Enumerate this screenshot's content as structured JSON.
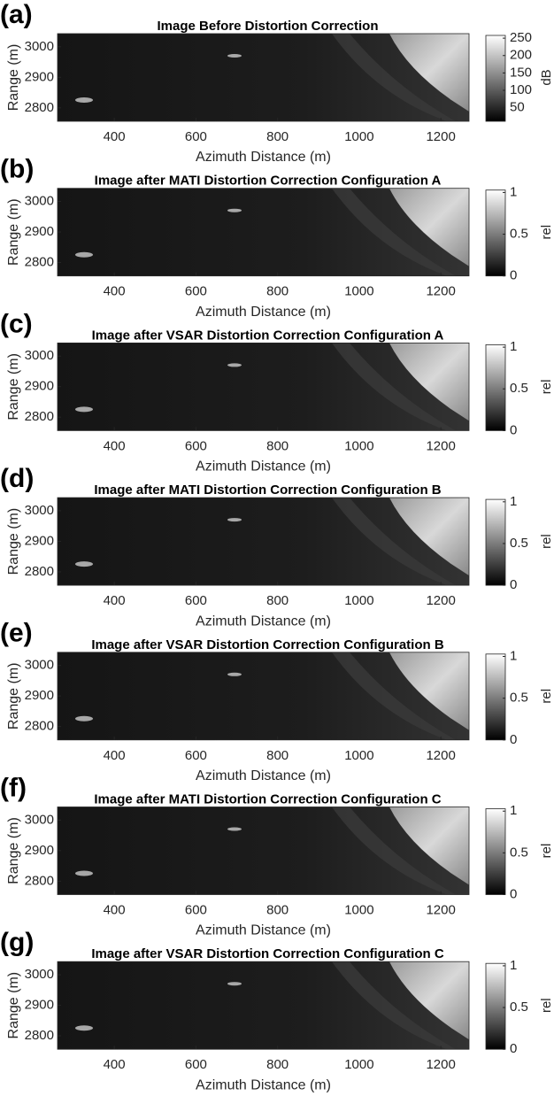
{
  "chart_data": [
    {
      "type": "image",
      "panel": "(a)",
      "title": "Image Before Distortion Correction",
      "xlabel": "Azimuth Distance (m)",
      "ylabel": "Range (m)",
      "xlim": [
        261,
        1269
      ],
      "xticks": [
        400,
        600,
        800,
        1000,
        1200
      ],
      "ylim": [
        2756,
        3043
      ],
      "yticks": [
        2800,
        2900,
        3000
      ],
      "colorbar": {
        "label": "dB",
        "lim": [
          11,
          263
        ],
        "ticks": [
          50,
          100,
          150,
          200,
          250
        ]
      }
    },
    {
      "type": "image",
      "panel": "(b)",
      "title": "Image after MATI Distortion Correction Configuration A",
      "xlabel": "Azimuth Distance (m)",
      "ylabel": "Range (m)",
      "xlim": [
        261,
        1269
      ],
      "xticks": [
        400,
        600,
        800,
        1000,
        1200
      ],
      "ylim": [
        2756,
        3043
      ],
      "yticks": [
        2800,
        2900,
        3000
      ],
      "colorbar": {
        "label": "rel",
        "lim": [
          0,
          1.05
        ],
        "ticks": [
          0,
          0.5,
          1
        ]
      }
    },
    {
      "type": "image",
      "panel": "(c)",
      "title": "Image after VSAR Distortion Correction Configuration A",
      "xlabel": "Azimuth Distance (m)",
      "ylabel": "Range (m)",
      "xlim": [
        261,
        1269
      ],
      "xticks": [
        400,
        600,
        800,
        1000,
        1200
      ],
      "ylim": [
        2756,
        3043
      ],
      "yticks": [
        2800,
        2900,
        3000
      ],
      "colorbar": {
        "label": "rel",
        "lim": [
          0,
          1.05
        ],
        "ticks": [
          0,
          0.5,
          1
        ]
      }
    },
    {
      "type": "image",
      "panel": "(d)",
      "title": "Image after MATI Distortion Correction Configuration B",
      "xlabel": "Azimuth Distance (m)",
      "ylabel": "Range (m)",
      "xlim": [
        261,
        1269
      ],
      "xticks": [
        400,
        600,
        800,
        1000,
        1200
      ],
      "ylim": [
        2756,
        3043
      ],
      "yticks": [
        2800,
        2900,
        3000
      ],
      "colorbar": {
        "label": "rel",
        "lim": [
          0,
          1.05
        ],
        "ticks": [
          0,
          0.5,
          1
        ]
      }
    },
    {
      "type": "image",
      "panel": "(e)",
      "title": "Image after VSAR Distortion Correction Configuration B",
      "xlabel": "Azimuth Distance (m)",
      "ylabel": "Range (m)",
      "xlim": [
        261,
        1269
      ],
      "xticks": [
        400,
        600,
        800,
        1000,
        1200
      ],
      "ylim": [
        2756,
        3043
      ],
      "yticks": [
        2800,
        2900,
        3000
      ],
      "colorbar": {
        "label": "rel",
        "lim": [
          0,
          1.05
        ],
        "ticks": [
          0,
          0.5,
          1
        ]
      }
    },
    {
      "type": "image",
      "panel": "(f)",
      "title": "Image after MATI Distortion Correction Configuration C",
      "xlabel": "Azimuth Distance (m)",
      "ylabel": "Range (m)",
      "xlim": [
        261,
        1269
      ],
      "xticks": [
        400,
        600,
        800,
        1000,
        1200
      ],
      "ylim": [
        2756,
        3043
      ],
      "yticks": [
        2800,
        2900,
        3000
      ],
      "colorbar": {
        "label": "rel",
        "lim": [
          0,
          1.05
        ],
        "ticks": [
          0,
          0.5,
          1
        ]
      }
    },
    {
      "type": "image",
      "panel": "(g)",
      "title": "Image after VSAR Distortion Correction Configuration C",
      "xlabel": "Azimuth Distance (m)",
      "ylabel": "Range (m)",
      "xlim": [
        261,
        1269
      ],
      "xticks": [
        400,
        600,
        800,
        1000,
        1200
      ],
      "ylim": [
        2756,
        3043
      ],
      "yticks": [
        2800,
        2900,
        3000
      ],
      "colorbar": {
        "label": "rel",
        "lim": [
          0,
          1.05
        ],
        "ticks": [
          0,
          0.5,
          1
        ]
      }
    }
  ]
}
